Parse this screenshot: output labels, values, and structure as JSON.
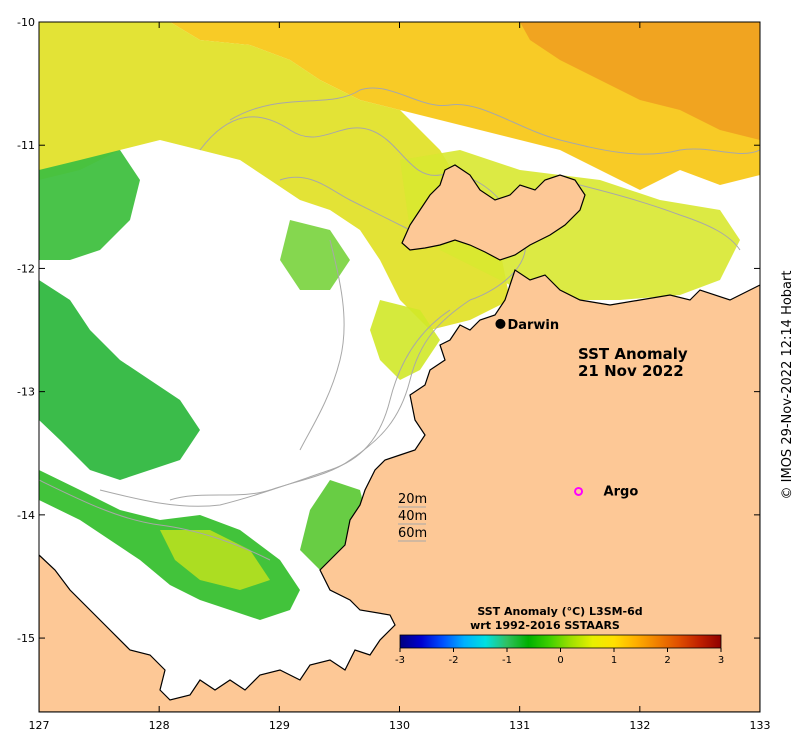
{
  "map": {
    "title_line1": "SST Anomaly",
    "title_line2": "21 Nov 2022",
    "x_ticks": [
      "127",
      "128",
      "129",
      "130",
      "131",
      "132",
      "133"
    ],
    "y_ticks": [
      "-10",
      "-11",
      "-12",
      "-13",
      "-14",
      "-15"
    ],
    "places": [
      {
        "name": "Darwin",
        "marker": "filled-circle",
        "lon": 130.84,
        "lat": -12.45
      },
      {
        "name": "Argo",
        "marker": "open-circle-magenta",
        "lon": 131.49,
        "lat": -13.81
      }
    ],
    "depth_labels": [
      "20m",
      "40m",
      "60m"
    ],
    "credit": "© IMOS 29-Nov-2022 12:14 Hobart",
    "colors": {
      "land": "#fdc896",
      "contour": "#a8a8a8",
      "argo": "#ff00ff"
    }
  },
  "colorbar": {
    "title_line1": "SST Anomaly (°C) L3SM-6d",
    "title_line2": "wrt 1992-2016 SSTAARS",
    "ticks": [
      "-3",
      "-2",
      "-1",
      "0",
      "1",
      "2",
      "3"
    ],
    "range": [
      -3,
      3
    ],
    "colors": [
      "#000080",
      "#0000d0",
      "#0050ff",
      "#00b0ff",
      "#00e0e0",
      "#30c060",
      "#00b000",
      "#40d000",
      "#a0e000",
      "#e8f000",
      "#ffe000",
      "#ffb000",
      "#f08000",
      "#e05000",
      "#c02000",
      "#900000"
    ]
  }
}
